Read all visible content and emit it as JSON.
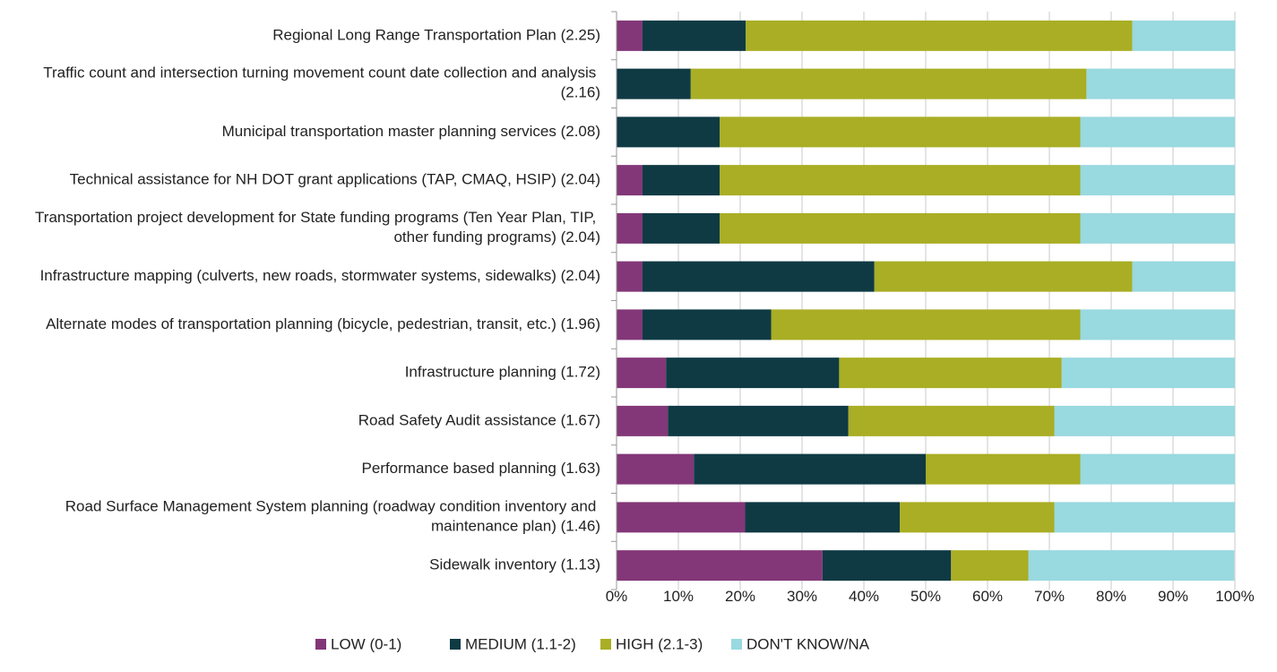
{
  "chart_data": {
    "type": "stacked_barh",
    "categories": [
      "Regional Long Range Transportation Plan  (2.25)",
      "Traffic count and intersection turning movement count date collection and analysis  (2.16)",
      "Municipal transportation master planning services  (2.08)",
      "Technical assistance for NH DOT grant applications (TAP, CMAQ, HSIP) (2.04)",
      "Transportation project development for State funding programs (Ten Year Plan, TIP, other funding programs) (2.04)",
      "Infrastructure mapping (culverts, new roads, stormwater systems, sidewalks) (2.04)",
      "Alternate modes of transportation planning (bicycle, pedestrian, transit, etc.) (1.96)",
      "Infrastructure planning (1.72)",
      "Road Safety Audit assistance (1.67)",
      "Performance based planning (1.63)",
      "Road Surface Management System planning (roadway condition inventory and maintenance plan) (1.46)",
      "Sidewalk inventory (1.13)"
    ],
    "series": [
      {
        "name": "LOW (0-1)",
        "color": "#833778",
        "values": [
          4.2,
          0,
          0,
          4.2,
          4.2,
          4.2,
          4.2,
          8,
          8.3,
          12.5,
          20.8,
          33.3
        ]
      },
      {
        "name": "MEDIUM (1.1-2)",
        "color": "#0f3a44",
        "values": [
          16.7,
          12,
          16.7,
          12.5,
          12.5,
          37.5,
          20.8,
          28,
          29.2,
          37.5,
          25,
          20.8
        ]
      },
      {
        "name": "HIGH (2.1-3)",
        "color": "#a9ae24",
        "values": [
          62.5,
          64,
          58.3,
          58.3,
          58.3,
          41.7,
          50,
          36,
          33.3,
          25,
          25,
          12.5
        ]
      },
      {
        "name": "DON'T KNOW/NA",
        "color": "#99d9e0",
        "values": [
          16.7,
          24,
          25,
          25,
          25,
          16.7,
          25,
          28,
          29.2,
          25,
          29.2,
          33.3
        ]
      }
    ],
    "xlim": [
      0,
      100
    ],
    "xticks": [
      {
        "value": 0,
        "label": "0%"
      },
      {
        "value": 10,
        "label": "10%"
      },
      {
        "value": 20,
        "label": "20%"
      },
      {
        "value": 30,
        "label": "30%"
      },
      {
        "value": 40,
        "label": "40%"
      },
      {
        "value": 50,
        "label": "50%"
      },
      {
        "value": 60,
        "label": "60%"
      },
      {
        "value": 70,
        "label": "70%"
      },
      {
        "value": 80,
        "label": "80%"
      },
      {
        "value": 90,
        "label": "90%"
      },
      {
        "value": 100,
        "label": "100%"
      }
    ],
    "grid": true,
    "legend": "bottom"
  }
}
